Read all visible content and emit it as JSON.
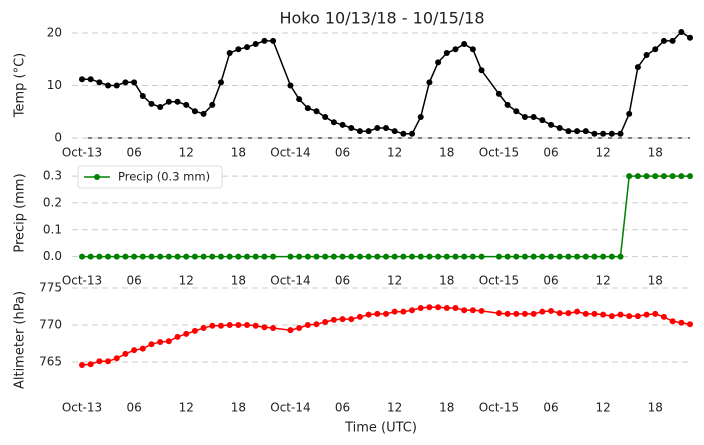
{
  "chart_data": [
    {
      "type": "line",
      "title": "Hoko 10/13/18 - 10/15/18",
      "ylabel": "Temp (°C)",
      "x": [
        0,
        1,
        2,
        3,
        4,
        5,
        6,
        7,
        8,
        9,
        10,
        11,
        12,
        13,
        14,
        15,
        16,
        17,
        18,
        19,
        20,
        21,
        22,
        24,
        25,
        26,
        27,
        28,
        29,
        30,
        31,
        32,
        33,
        34,
        35,
        36,
        37,
        38,
        39,
        40,
        41,
        42,
        43,
        44,
        45,
        46,
        48,
        49,
        50,
        51,
        52,
        53,
        54,
        55,
        56,
        57,
        58,
        59,
        60,
        61,
        62,
        63,
        64,
        65,
        66,
        67,
        68,
        69,
        70
      ],
      "series": [
        {
          "color": "#000000",
          "values": [
            11.2,
            11.2,
            10.6,
            10,
            10,
            10.6,
            10.6,
            8,
            6.5,
            5.9,
            6.9,
            6.9,
            6.3,
            5.1,
            4.6,
            6.3,
            10.6,
            16.2,
            16.9,
            17.3,
            17.9,
            18.5,
            18.5,
            10,
            7.4,
            5.7,
            5.1,
            4,
            3,
            2.5,
            1.9,
            1.3,
            1.3,
            1.9,
            1.9,
            1.3,
            0.8,
            0.8,
            4,
            10.6,
            14.4,
            16.2,
            16.9,
            17.9,
            16.9,
            12.9,
            8.4,
            6.3,
            5.1,
            4,
            4,
            3.4,
            2.5,
            1.9,
            1.3,
            1.3,
            1.3,
            0.8,
            0.8,
            0.8,
            0.8,
            4.6,
            13.5,
            15.8,
            16.9,
            18.5,
            18.5,
            20.2,
            19.1
          ]
        }
      ],
      "xlim": [
        0,
        70
      ],
      "xticks": [
        {
          "value": 0,
          "label": "Oct-13"
        },
        {
          "value": 6,
          "label": "06"
        },
        {
          "value": 12,
          "label": "12"
        },
        {
          "value": 18,
          "label": "18"
        },
        {
          "value": 24,
          "label": "Oct-14"
        },
        {
          "value": 30,
          "label": "06"
        },
        {
          "value": 36,
          "label": "12"
        },
        {
          "value": 42,
          "label": "18"
        },
        {
          "value": 48,
          "label": "Oct-15"
        },
        {
          "value": 54,
          "label": "06"
        },
        {
          "value": 60,
          "label": "12"
        },
        {
          "value": 66,
          "label": "18"
        }
      ],
      "ylim": [
        0,
        20
      ],
      "yticks": [
        0,
        10,
        20
      ],
      "grid": true
    },
    {
      "type": "line",
      "ylabel": "Precip (mm)",
      "legend": "upper left",
      "x": [
        0,
        1,
        2,
        3,
        4,
        5,
        6,
        7,
        8,
        9,
        10,
        11,
        12,
        13,
        14,
        15,
        16,
        17,
        18,
        19,
        20,
        21,
        22,
        24,
        25,
        26,
        27,
        28,
        29,
        30,
        31,
        32,
        33,
        34,
        35,
        36,
        37,
        38,
        39,
        40,
        41,
        42,
        43,
        44,
        45,
        46,
        48,
        49,
        50,
        51,
        52,
        53,
        54,
        55,
        56,
        57,
        58,
        59,
        60,
        61,
        62,
        63,
        64,
        65,
        66,
        67,
        68,
        69,
        70
      ],
      "series": [
        {
          "name": "Precip (0.3 mm)",
          "color": "#008000",
          "values": [
            0,
            0,
            0,
            0,
            0,
            0,
            0,
            0,
            0,
            0,
            0,
            0,
            0,
            0,
            0,
            0,
            0,
            0,
            0,
            0,
            0,
            0,
            0,
            0,
            0,
            0,
            0,
            0,
            0,
            0,
            0,
            0,
            0,
            0,
            0,
            0,
            0,
            0,
            0,
            0,
            0,
            0,
            0,
            0,
            0,
            0,
            0,
            0,
            0,
            0,
            0,
            0,
            0,
            0,
            0,
            0,
            0,
            0,
            0,
            0,
            0,
            0.3,
            0.3,
            0.3,
            0.3,
            0.3,
            0.3,
            0.3,
            0.3
          ]
        }
      ],
      "xlim": [
        0,
        70
      ],
      "xticks": [
        {
          "value": 0,
          "label": "Oct-13"
        },
        {
          "value": 6,
          "label": "06"
        },
        {
          "value": 12,
          "label": "12"
        },
        {
          "value": 18,
          "label": "18"
        },
        {
          "value": 24,
          "label": "Oct-14"
        },
        {
          "value": 30,
          "label": "06"
        },
        {
          "value": 36,
          "label": "12"
        },
        {
          "value": 42,
          "label": "18"
        },
        {
          "value": 48,
          "label": "Oct-15"
        },
        {
          "value": 54,
          "label": "06"
        },
        {
          "value": 60,
          "label": "12"
        },
        {
          "value": 66,
          "label": "18"
        }
      ],
      "ylim": [
        -0.05,
        0.36
      ],
      "yticks": [
        {
          "value": 0,
          "label": "0.0"
        },
        {
          "value": 0.1,
          "label": "0.1"
        },
        {
          "value": 0.2,
          "label": "0.2"
        },
        {
          "value": 0.3,
          "label": "0.3"
        }
      ],
      "grid": true
    },
    {
      "type": "line",
      "ylabel": "Altimeter (hPa)",
      "xlabel": "Time (UTC)",
      "x": [
        0,
        1,
        2,
        3,
        4,
        5,
        6,
        7,
        8,
        9,
        10,
        11,
        12,
        13,
        14,
        15,
        16,
        17,
        18,
        19,
        20,
        21,
        22,
        24,
        25,
        26,
        27,
        28,
        29,
        30,
        31,
        32,
        33,
        34,
        35,
        36,
        37,
        38,
        39,
        40,
        41,
        42,
        43,
        44,
        45,
        46,
        48,
        49,
        50,
        51,
        52,
        53,
        54,
        55,
        56,
        57,
        58,
        59,
        60,
        61,
        62,
        63,
        64,
        65,
        66,
        67,
        68,
        69,
        70
      ],
      "series": [
        {
          "color": "#ff0000",
          "values": [
            764.6,
            764.7,
            765.1,
            765.1,
            765.5,
            766.1,
            766.6,
            766.8,
            767.4,
            767.7,
            767.8,
            768.4,
            768.8,
            769.2,
            769.6,
            769.9,
            769.9,
            770,
            770,
            770,
            769.9,
            769.7,
            769.6,
            769.3,
            769.6,
            770,
            770.1,
            770.4,
            770.7,
            770.8,
            770.8,
            771.1,
            771.4,
            771.5,
            771.5,
            771.8,
            771.8,
            772,
            772.3,
            772.4,
            772.4,
            772.3,
            772.3,
            772,
            772,
            771.9,
            771.6,
            771.5,
            771.5,
            771.5,
            771.5,
            771.8,
            771.9,
            771.6,
            771.6,
            771.8,
            771.5,
            771.5,
            771.4,
            771.2,
            771.4,
            771.2,
            771.2,
            771.4,
            771.5,
            771.1,
            770.5,
            770.3,
            770.1
          ]
        }
      ],
      "xlim": [
        0,
        70
      ],
      "xticks": [
        {
          "value": 0,
          "label": "Oct-13"
        },
        {
          "value": 6,
          "label": "06"
        },
        {
          "value": 12,
          "label": "12"
        },
        {
          "value": 18,
          "label": "18"
        },
        {
          "value": 24,
          "label": "Oct-14"
        },
        {
          "value": 30,
          "label": "06"
        },
        {
          "value": 36,
          "label": "12"
        },
        {
          "value": 42,
          "label": "18"
        },
        {
          "value": 48,
          "label": "Oct-15"
        },
        {
          "value": 54,
          "label": "06"
        },
        {
          "value": 60,
          "label": "12"
        },
        {
          "value": 66,
          "label": "18"
        }
      ],
      "ylim": [
        760,
        775
      ],
      "yticks": [
        765,
        770,
        775
      ],
      "grid": true
    }
  ]
}
